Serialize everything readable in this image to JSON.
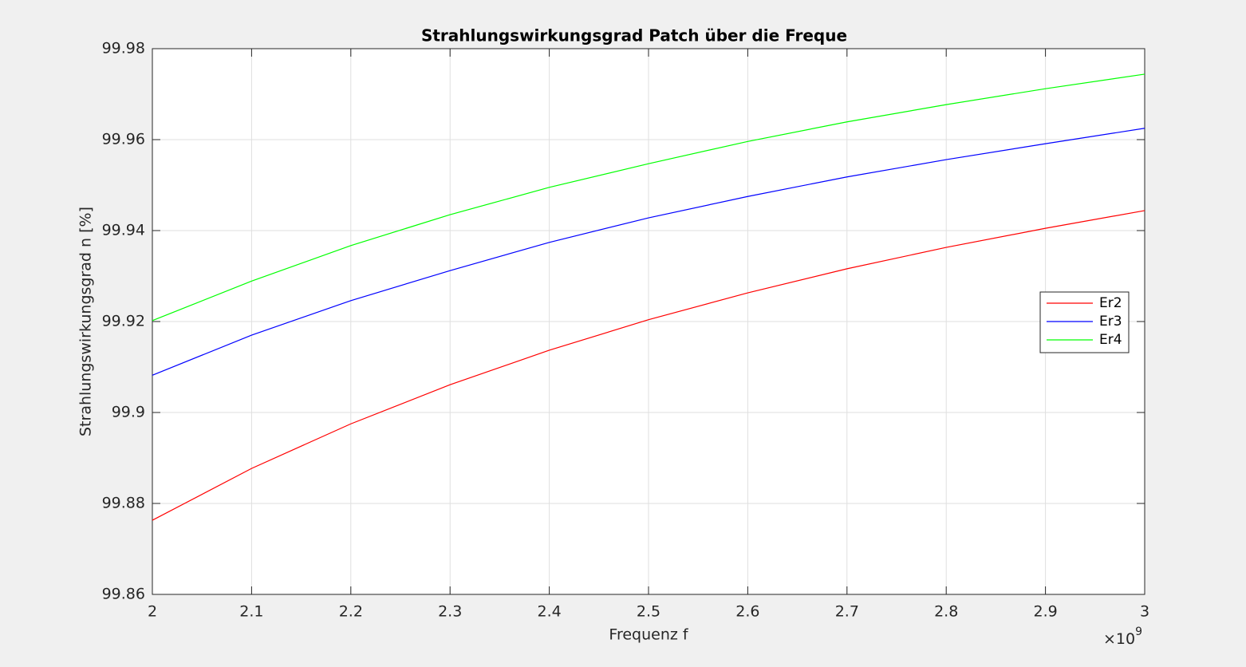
{
  "chart_data": {
    "type": "line",
    "title": "Strahlungswirkungsgrad Patch über die Freque",
    "x_label": "Frequenz f",
    "y_label": "Strahlungswirkungsgrad n [%]",
    "x_multiplier": {
      "base": "×10",
      "power": "9"
    },
    "x": [
      2,
      2.1,
      2.2,
      2.3,
      2.4,
      2.5,
      2.6,
      2.7,
      2.8,
      2.9,
      3
    ],
    "series": [
      {
        "name": "Er2",
        "color": "#ff0000",
        "values": [
          99.8763,
          99.8877,
          99.8975,
          99.9061,
          99.9137,
          99.9204,
          99.9263,
          99.9316,
          99.9363,
          99.9405,
          99.9444
        ]
      },
      {
        "name": "Er3",
        "color": "#0000ff",
        "values": [
          99.9082,
          99.917,
          99.9246,
          99.9312,
          99.9374,
          99.9428,
          99.9475,
          99.9518,
          99.9556,
          99.9591,
          99.9625
        ]
      },
      {
        "name": "Er4",
        "color": "#00ff00",
        "values": [
          99.9202,
          99.9289,
          99.9367,
          99.9435,
          99.9495,
          99.9547,
          99.9596,
          99.9639,
          99.9677,
          99.9712,
          99.9744
        ]
      }
    ],
    "xlim": [
      2,
      3
    ],
    "xticks": [
      2,
      2.1,
      2.2,
      2.3,
      2.4,
      2.5,
      2.6,
      2.7,
      2.8,
      2.9,
      3
    ],
    "ylim": [
      99.86,
      99.98
    ],
    "yticks": [
      99.86,
      99.88,
      99.9,
      99.92,
      99.94,
      99.96,
      99.98
    ],
    "grid": true,
    "legend_position": "east"
  }
}
